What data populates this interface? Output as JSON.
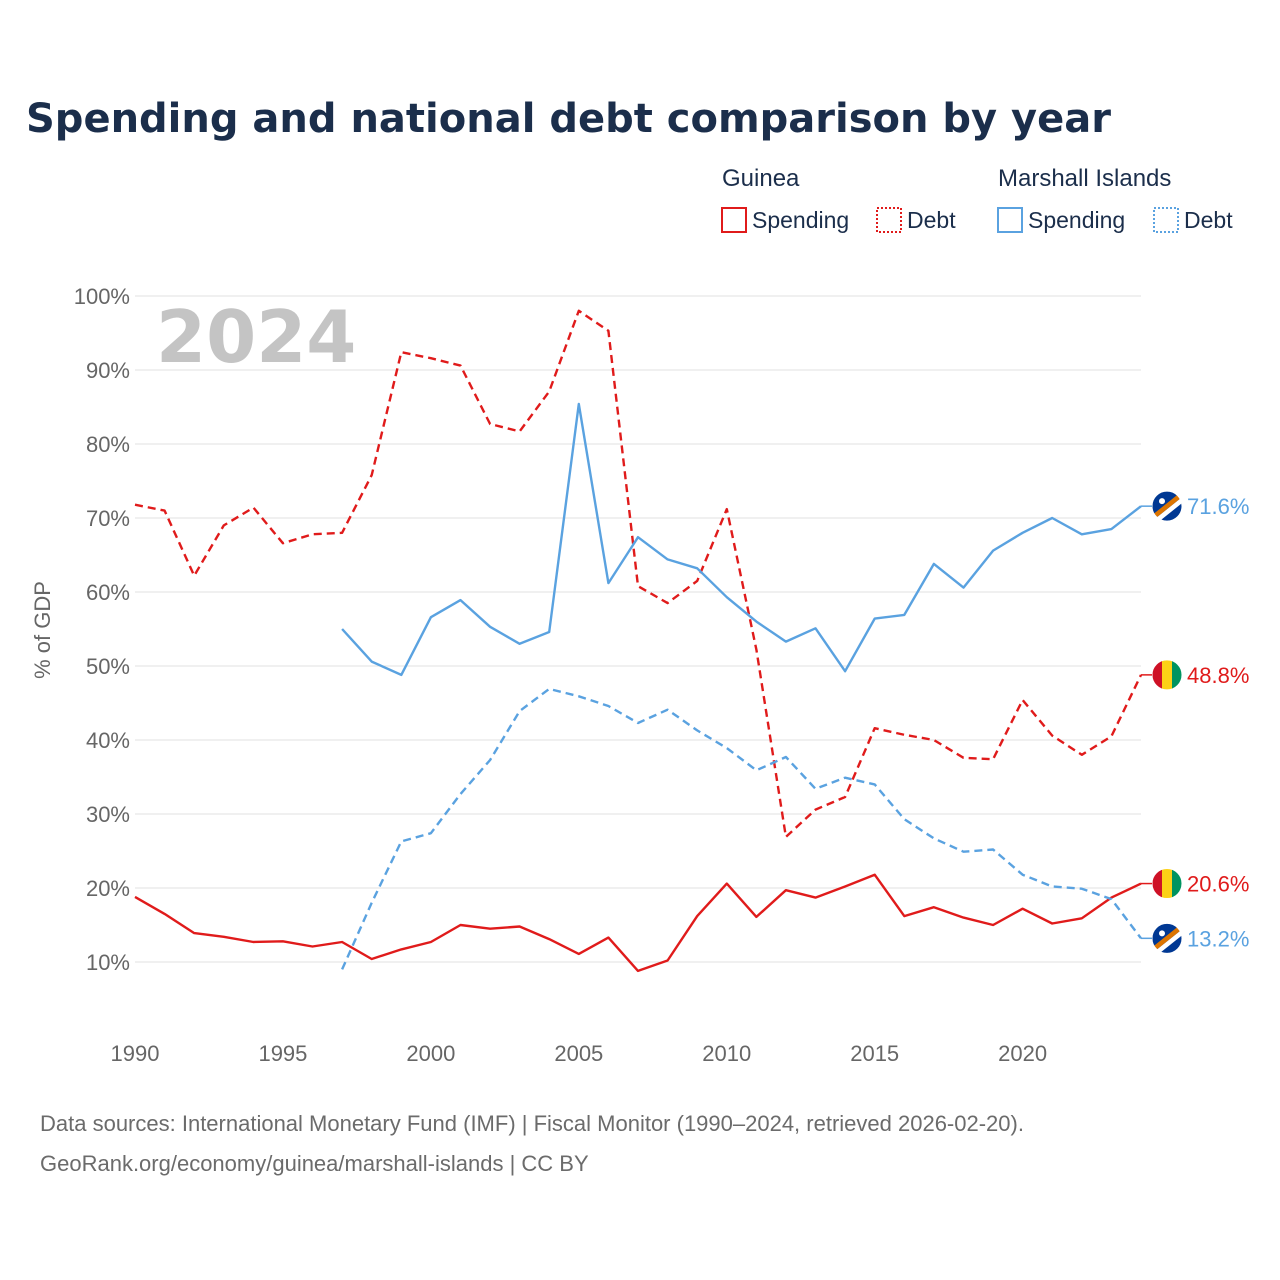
{
  "title": "Spending and national debt comparison by year",
  "watermark_year": "2024",
  "legend": {
    "groups": [
      {
        "name": "Guinea",
        "color": "#e01b1b",
        "items": [
          "Spending",
          "Debt"
        ]
      },
      {
        "name": "Marshall Islands",
        "color": "#5aa2e0",
        "items": [
          "Spending",
          "Debt"
        ]
      }
    ]
  },
  "source": {
    "line1": "Data sources: International Monetary Fund (IMF) | Fiscal Monitor (1990–2024, retrieved 2026-02-20).",
    "line2": "GeoRank.org/economy/guinea/marshall-islands | CC BY"
  },
  "chart_data": {
    "type": "line",
    "title": "Spending and national debt comparison by year",
    "xlabel": "",
    "ylabel": "% of GDP",
    "xlim": [
      1990,
      2024
    ],
    "ylim": [
      10,
      100
    ],
    "x_ticks": [
      1990,
      1995,
      2000,
      2005,
      2010,
      2015,
      2020
    ],
    "x_tick_labels": [
      "1990",
      "1995",
      "2000",
      "2005",
      "2010",
      "2015",
      "2020"
    ],
    "y_ticks": [
      10,
      20,
      30,
      40,
      50,
      60,
      70,
      80,
      90,
      100
    ],
    "y_tick_labels": [
      "10%",
      "20%",
      "30%",
      "40%",
      "50%",
      "60%",
      "70%",
      "80%",
      "90%",
      "100%"
    ],
    "grid": true,
    "legend_position": "top-right",
    "series": [
      {
        "name": "Guinea Spending",
        "country": "Guinea",
        "metric": "Spending",
        "color": "#e01b1b",
        "dash": "solid",
        "x": [
          1990,
          1991,
          1992,
          1993,
          1994,
          1995,
          1996,
          1997,
          1998,
          1999,
          2000,
          2001,
          2002,
          2003,
          2004,
          2005,
          2006,
          2007,
          2008,
          2009,
          2010,
          2011,
          2012,
          2013,
          2014,
          2015,
          2016,
          2017,
          2018,
          2019,
          2020,
          2021,
          2022,
          2023,
          2024
        ],
        "values": [
          18.8,
          16.5,
          13.9,
          13.4,
          12.7,
          12.8,
          12.1,
          12.7,
          10.4,
          11.7,
          12.7,
          15.0,
          14.5,
          14.8,
          13.1,
          11.1,
          13.3,
          8.8,
          10.2,
          16.2,
          20.6,
          16.1,
          19.7,
          18.7,
          20.2,
          21.8,
          16.2,
          17.4,
          16.0,
          15.0,
          17.2,
          15.2,
          15.9,
          18.7,
          20.6
        ],
        "end_label": "20.6%"
      },
      {
        "name": "Guinea Debt",
        "country": "Guinea",
        "metric": "Debt",
        "color": "#e01b1b",
        "dash": "dashed",
        "x": [
          1990,
          1991,
          1992,
          1993,
          1994,
          1995,
          1996,
          1997,
          1998,
          1999,
          2000,
          2001,
          2002,
          2003,
          2004,
          2005,
          2006,
          2007,
          2008,
          2009,
          2010,
          2011,
          2012,
          2013,
          2014,
          2015,
          2016,
          2017,
          2018,
          2019,
          2020,
          2021,
          2022,
          2023,
          2024
        ],
        "values": [
          71.8,
          71.0,
          62.2,
          69.0,
          71.4,
          66.6,
          67.8,
          68.0,
          75.8,
          92.4,
          91.6,
          90.6,
          82.7,
          81.7,
          87.1,
          98.0,
          95.3,
          60.8,
          58.5,
          61.5,
          71.2,
          52.2,
          26.9,
          30.6,
          32.3,
          41.6,
          40.7,
          40.0,
          37.6,
          37.4,
          45.4,
          40.6,
          38.0,
          40.5,
          48.8
        ],
        "end_label": "48.8%"
      },
      {
        "name": "Marshall Islands Spending",
        "country": "Marshall Islands",
        "metric": "Spending",
        "color": "#5aa2e0",
        "dash": "solid",
        "x": [
          1997,
          1998,
          1999,
          2000,
          2001,
          2002,
          2003,
          2004,
          2005,
          2006,
          2007,
          2008,
          2009,
          2010,
          2011,
          2012,
          2013,
          2014,
          2015,
          2016,
          2017,
          2018,
          2019,
          2020,
          2021,
          2022,
          2023,
          2024
        ],
        "values": [
          55.0,
          50.6,
          48.8,
          56.6,
          58.9,
          55.3,
          53.0,
          54.6,
          85.4,
          61.2,
          67.4,
          64.4,
          63.2,
          59.3,
          56.0,
          53.3,
          55.1,
          49.3,
          56.4,
          56.9,
          63.8,
          60.6,
          65.6,
          68.0,
          70.0,
          67.8,
          68.5,
          71.6
        ],
        "end_label": "71.6%"
      },
      {
        "name": "Marshall Islands Debt",
        "country": "Marshall Islands",
        "metric": "Debt",
        "color": "#5aa2e0",
        "dash": "dashed",
        "x": [
          1997,
          1998,
          1999,
          2000,
          2001,
          2002,
          2003,
          2004,
          2005,
          2006,
          2007,
          2008,
          2009,
          2010,
          2011,
          2012,
          2013,
          2014,
          2015,
          2016,
          2017,
          2018,
          2019,
          2020,
          2021,
          2022,
          2023,
          2024
        ],
        "values": [
          9.0,
          18.0,
          26.3,
          27.4,
          32.7,
          37.3,
          43.9,
          46.9,
          45.9,
          44.6,
          42.3,
          44.1,
          41.3,
          38.9,
          35.9,
          37.7,
          33.4,
          34.9,
          34.0,
          29.3,
          26.7,
          24.9,
          25.2,
          21.8,
          20.2,
          19.9,
          18.5,
          13.2
        ],
        "end_label": "13.2%"
      }
    ]
  }
}
